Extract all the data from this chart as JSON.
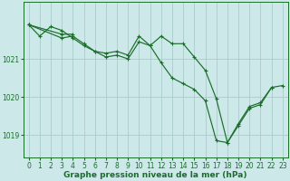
{
  "background_color": "#cce8e8",
  "grid_color": "#aacccc",
  "line_color": "#1a6e2a",
  "marker_color": "#1a6e2a",
  "xlabel": "Graphe pression niveau de la mer (hPa)",
  "xlabel_fontsize": 6.5,
  "xlim": [
    -0.5,
    23.5
  ],
  "ylim": [
    1018.4,
    1022.5
  ],
  "yticks": [
    1019,
    1020,
    1021
  ],
  "xticks": [
    0,
    1,
    2,
    3,
    4,
    5,
    6,
    7,
    8,
    9,
    10,
    11,
    12,
    13,
    14,
    15,
    16,
    17,
    18,
    19,
    20,
    21,
    22,
    23
  ],
  "tick_fontsize": 5.5,
  "series1": {
    "x": [
      0,
      1,
      2,
      3,
      4,
      5,
      6,
      7,
      8,
      9,
      10,
      11,
      12,
      13,
      14,
      15,
      16,
      17,
      18,
      19,
      20,
      21,
      22
    ],
    "y": [
      1021.9,
      1021.6,
      1021.85,
      1021.75,
      1021.55,
      1021.35,
      1021.2,
      1021.15,
      1021.2,
      1021.1,
      1021.6,
      1021.35,
      1020.9,
      1020.5,
      1020.35,
      1020.2,
      1019.9,
      1018.85,
      1018.8,
      1019.3,
      1019.75,
      1019.85,
      1020.25
    ]
  },
  "series2": {
    "x": [
      0,
      3,
      4
    ],
    "y": [
      1021.9,
      1021.65,
      1021.65
    ]
  },
  "series3": {
    "x": [
      0,
      3,
      4,
      5,
      6,
      7,
      8,
      9,
      10,
      11,
      12,
      13,
      14,
      15,
      16,
      17,
      18,
      19,
      20,
      21,
      22,
      23
    ],
    "y": [
      1021.9,
      1021.55,
      1021.6,
      1021.4,
      1021.2,
      1021.05,
      1021.1,
      1021.0,
      1021.45,
      1021.35,
      1021.6,
      1021.4,
      1021.4,
      1021.05,
      1020.7,
      1019.95,
      1018.8,
      1019.25,
      1019.7,
      1019.8,
      1020.25,
      1020.3
    ]
  }
}
